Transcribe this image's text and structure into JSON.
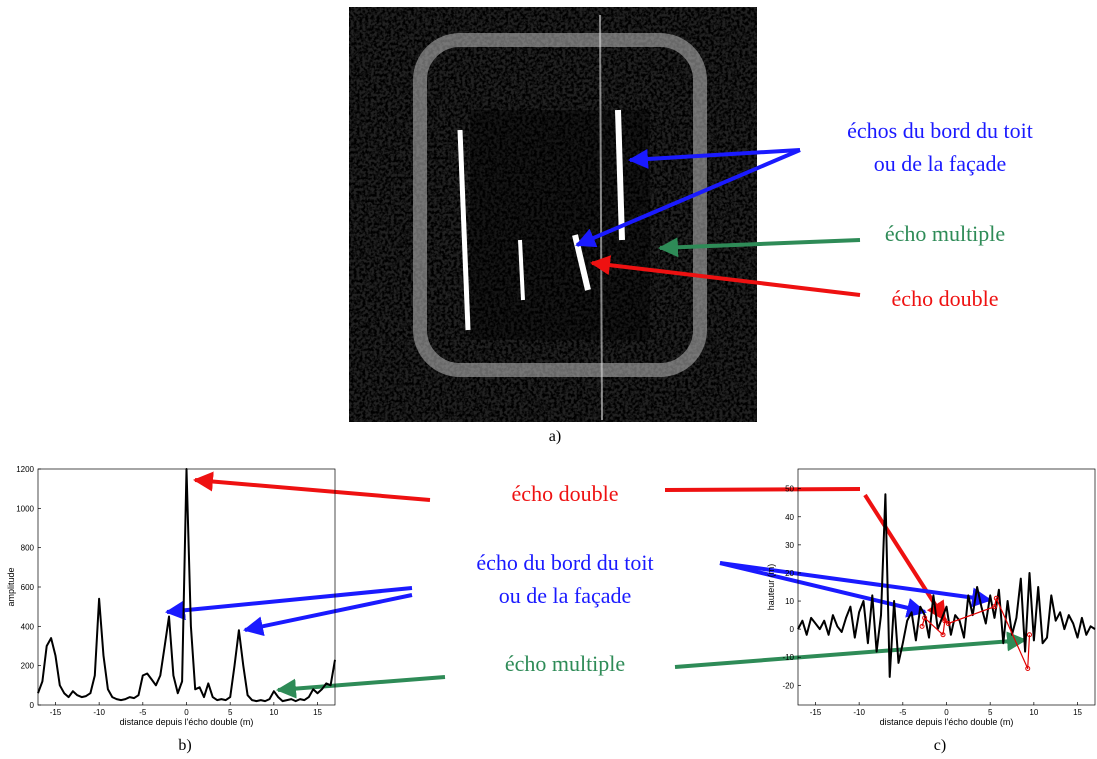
{
  "figure": {
    "image_labels": [
      "échos du bord du toit",
      "ou de la façade",
      "écho multiple",
      "écho double"
    ],
    "plot_labels": [
      "écho double",
      "écho du bord du toit",
      "ou de la façade",
      "écho multiple"
    ],
    "captions": [
      "a)",
      "b)",
      "c)"
    ]
  },
  "chart_data": [
    {
      "type": "line",
      "xlabel": "distance depuis l'écho double (m)",
      "ylabel": "amplitude",
      "xlim": [
        -17,
        17
      ],
      "ylim": [
        0,
        1200
      ],
      "xticks": [
        -15,
        -10,
        -5,
        0,
        5,
        10,
        15
      ],
      "yticks": [
        0,
        200,
        400,
        600,
        800,
        1000,
        1200
      ],
      "x": [
        -17,
        -16.5,
        -16,
        -15.5,
        -15,
        -14.5,
        -14,
        -13.5,
        -13,
        -12.5,
        -12,
        -11.5,
        -11,
        -10.5,
        -10,
        -9.5,
        -9,
        -8.5,
        -8,
        -7.5,
        -7,
        -6.5,
        -6,
        -5.5,
        -5,
        -4.5,
        -4,
        -3.5,
        -3,
        -2.5,
        -2,
        -1.5,
        -1,
        -0.5,
        0,
        0.5,
        1,
        1.5,
        2,
        2.5,
        3,
        3.5,
        4,
        4.5,
        5,
        5.5,
        6,
        6.5,
        7,
        7.5,
        8,
        8.5,
        9,
        9.5,
        10,
        10.5,
        11,
        11.5,
        12,
        12.5,
        13,
        13.5,
        14,
        14.5,
        15,
        15.5,
        16,
        16.5,
        17
      ],
      "series": [
        {
          "color": "#000000",
          "values": [
            60,
            120,
            300,
            340,
            250,
            100,
            60,
            40,
            70,
            50,
            40,
            45,
            60,
            150,
            540,
            250,
            80,
            40,
            30,
            25,
            30,
            40,
            35,
            50,
            150,
            160,
            130,
            100,
            150,
            300,
            450,
            150,
            60,
            120,
            1200,
            400,
            80,
            90,
            40,
            110,
            40,
            25,
            30,
            25,
            40,
            200,
            380,
            200,
            50,
            25,
            20,
            25,
            20,
            30,
            70,
            40,
            20,
            25,
            30,
            20,
            30,
            25,
            40,
            80,
            60,
            80,
            110,
            100,
            230
          ]
        }
      ]
    },
    {
      "type": "line",
      "xlabel": "distance depuis l'écho double (m)",
      "ylabel": "hauteur (m)",
      "xlim": [
        -17,
        17
      ],
      "ylim": [
        -27,
        57
      ],
      "xticks": [
        -15,
        -10,
        -5,
        0,
        5,
        10,
        15
      ],
      "yticks": [
        -20,
        -10,
        0,
        10,
        20,
        30,
        40,
        50
      ],
      "series": [
        {
          "color": "#000000",
          "x": [
            -17,
            -16.5,
            -16,
            -15.5,
            -15,
            -14.5,
            -14,
            -13.5,
            -13,
            -12.5,
            -12,
            -11.5,
            -11,
            -10.5,
            -10,
            -9.5,
            -9,
            -8.5,
            -8,
            -7.5,
            -7,
            -6.5,
            -6,
            -5.5,
            -5,
            -4.5,
            -4,
            -3.5,
            -3,
            -2.5,
            -2,
            -1.5,
            -1,
            -0.5,
            0,
            0.5,
            1,
            1.5,
            2,
            2.5,
            3,
            3.5,
            4,
            4.5,
            5,
            5.5,
            6,
            6.5,
            7,
            7.5,
            8,
            8.5,
            9,
            9.5,
            10,
            10.5,
            11,
            11.5,
            12,
            12.5,
            13,
            13.5,
            14,
            14.5,
            15,
            15.5,
            16,
            16.5,
            17
          ],
          "values": [
            0,
            3,
            -2,
            4,
            2,
            0,
            3,
            -2,
            5,
            1,
            -1,
            4,
            8,
            -3,
            6,
            10,
            -5,
            12,
            -8,
            5,
            48,
            -17,
            10,
            -12,
            -5,
            3,
            6,
            -4,
            8,
            5,
            -3,
            12,
            0,
            4,
            8,
            -2,
            5,
            3,
            -3,
            12,
            5,
            15,
            8,
            2,
            12,
            4,
            14,
            -5,
            10,
            -2,
            4,
            18,
            -8,
            20,
            -4,
            15,
            -5,
            -3,
            12,
            3,
            6,
            0,
            5,
            2,
            -3,
            4,
            -2,
            1,
            0
          ]
        },
        {
          "color": "#e00000",
          "marker": "o",
          "x": [
            -2.8,
            -2.5,
            -0.4,
            -0.2,
            0.2,
            5.5,
            5.7,
            9.3,
            9.5
          ],
          "values": [
            1,
            4,
            -2,
            3,
            2,
            8,
            11,
            -14,
            -2
          ]
        }
      ]
    }
  ]
}
